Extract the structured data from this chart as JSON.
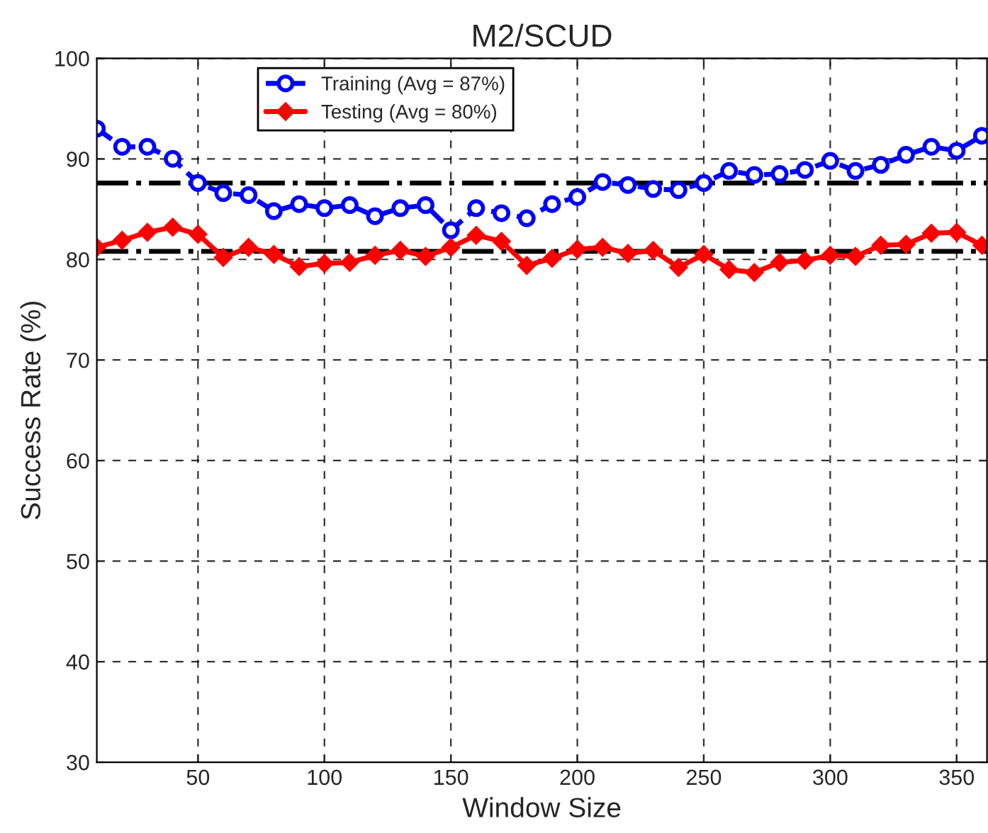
{
  "chart_data": {
    "type": "line",
    "title": "M2/SCUD",
    "xlabel": "Window Size",
    "ylabel": "Success Rate (%)",
    "x": [
      10,
      20,
      30,
      40,
      50,
      60,
      70,
      80,
      90,
      100,
      110,
      120,
      130,
      140,
      150,
      160,
      170,
      180,
      190,
      200,
      210,
      220,
      230,
      240,
      250,
      260,
      270,
      280,
      290,
      300,
      310,
      320,
      330,
      340,
      350,
      360
    ],
    "series": [
      {
        "name": "Training (Avg = 87%)",
        "color": "#0000ff",
        "marker": "circle",
        "line_style": "dashed",
        "values": [
          93,
          91.2,
          91.2,
          90,
          87.6,
          86.6,
          86.4,
          84.8,
          85.5,
          85.1,
          85.4,
          84.3,
          85.1,
          85.4,
          82.9,
          85.1,
          84.6,
          84.1,
          85.5,
          86.2,
          87.7,
          87.4,
          87.0,
          86.9,
          87.6,
          88.8,
          88.4,
          88.5,
          88.9,
          89.8,
          88.8,
          89.4,
          90.4,
          91.2,
          90.8,
          92.3
        ]
      },
      {
        "name": "Testing (Avg = 80%)",
        "color": "#ff0000",
        "marker": "diamond",
        "line_style": "solid",
        "values": [
          81.2,
          81.9,
          82.7,
          83.2,
          82.5,
          80.2,
          81.2,
          80.5,
          79.3,
          79.6,
          79.7,
          80.4,
          80.9,
          80.3,
          81.2,
          82.4,
          81.8,
          79.4,
          80.1,
          81.0,
          81.2,
          80.6,
          80.9,
          79.2,
          80.5,
          79.0,
          78.7,
          79.7,
          79.9,
          80.4,
          80.3,
          81.4,
          81.5,
          82.6,
          82.7,
          81.4
        ]
      }
    ],
    "ref_lines": [
      {
        "axis": "y",
        "value": 87.6,
        "color": "#000000",
        "line_style": "dashdot"
      },
      {
        "axis": "y",
        "value": 80.8,
        "color": "#000000",
        "line_style": "dashdot"
      }
    ],
    "xlim": [
      10,
      362
    ],
    "xticks": [
      50,
      100,
      150,
      200,
      250,
      300,
      350
    ],
    "ylim": [
      30,
      100
    ],
    "yticks": [
      30,
      40,
      50,
      60,
      70,
      80,
      90,
      100
    ],
    "grid": true,
    "legend": "top left"
  }
}
